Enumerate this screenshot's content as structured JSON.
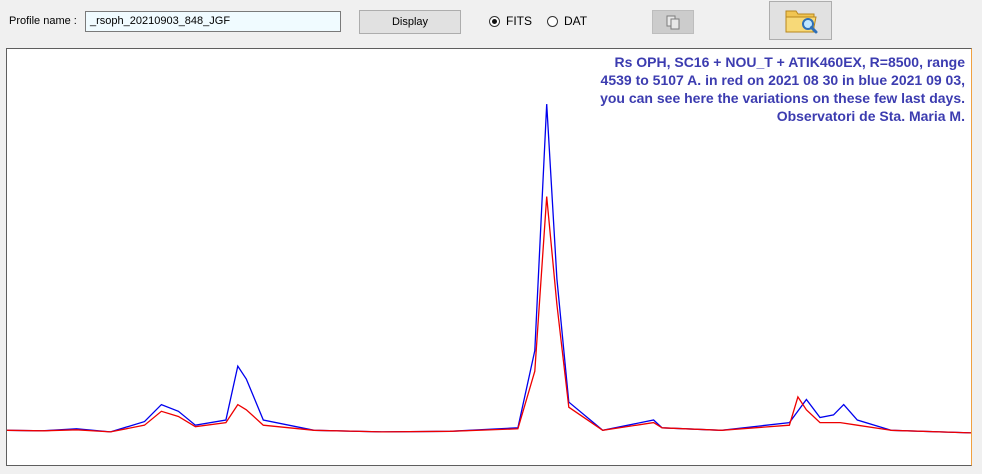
{
  "toolbar": {
    "profile_label": "Profile name :",
    "profile_value": "_rsoph_20210903_848_JGF",
    "display_label": "Display",
    "fits_label": "FITS",
    "dat_label": "DAT",
    "fits_selected": true
  },
  "plot": {
    "annotation": [
      "Rs OPH, SC16 + NOU_T + ATIK460EX, R=8500, range",
      "4539 to 5107 A. in red on 2021 08 30 in blue 2021 09 03,",
      "you can see here the variations on these few last days.",
      "Observatori de Sta. Maria M."
    ],
    "colors": {
      "blue": "#0000ee",
      "red": "#ee0000",
      "note": "#3c3cb0"
    }
  },
  "chart_data": {
    "type": "line",
    "x_range": [
      4539,
      5107
    ],
    "series": [
      {
        "color": "blue",
        "points": [
          [
            4539,
            1.05
          ],
          [
            4560,
            1.04
          ],
          [
            4580,
            1.08
          ],
          [
            4600,
            1.02
          ],
          [
            4620,
            1.22
          ],
          [
            4630,
            1.55
          ],
          [
            4640,
            1.42
          ],
          [
            4650,
            1.15
          ],
          [
            4668,
            1.25
          ],
          [
            4675,
            2.3
          ],
          [
            4680,
            2.05
          ],
          [
            4690,
            1.25
          ],
          [
            4720,
            1.05
          ],
          [
            4760,
            1.02
          ],
          [
            4800,
            1.03
          ],
          [
            4840,
            1.1
          ],
          [
            4850,
            2.6
          ],
          [
            4857,
            7.4
          ],
          [
            4863,
            4.0
          ],
          [
            4870,
            1.6
          ],
          [
            4890,
            1.05
          ],
          [
            4920,
            1.25
          ],
          [
            4925,
            1.1
          ],
          [
            4960,
            1.05
          ],
          [
            5000,
            1.2
          ],
          [
            5010,
            1.65
          ],
          [
            5018,
            1.3
          ],
          [
            5026,
            1.35
          ],
          [
            5032,
            1.55
          ],
          [
            5040,
            1.25
          ],
          [
            5060,
            1.05
          ],
          [
            5107,
            1.0
          ]
        ]
      },
      {
        "color": "red",
        "points": [
          [
            4539,
            1.05
          ],
          [
            4560,
            1.04
          ],
          [
            4580,
            1.06
          ],
          [
            4600,
            1.02
          ],
          [
            4620,
            1.15
          ],
          [
            4630,
            1.42
          ],
          [
            4640,
            1.32
          ],
          [
            4650,
            1.12
          ],
          [
            4668,
            1.2
          ],
          [
            4675,
            1.55
          ],
          [
            4680,
            1.45
          ],
          [
            4690,
            1.15
          ],
          [
            4720,
            1.05
          ],
          [
            4760,
            1.02
          ],
          [
            4800,
            1.03
          ],
          [
            4840,
            1.08
          ],
          [
            4850,
            2.2
          ],
          [
            4857,
            5.6
          ],
          [
            4863,
            3.5
          ],
          [
            4870,
            1.5
          ],
          [
            4890,
            1.05
          ],
          [
            4920,
            1.2
          ],
          [
            4925,
            1.1
          ],
          [
            4960,
            1.05
          ],
          [
            5000,
            1.15
          ],
          [
            5005,
            1.7
          ],
          [
            5010,
            1.45
          ],
          [
            5018,
            1.2
          ],
          [
            5030,
            1.2
          ],
          [
            5040,
            1.15
          ],
          [
            5060,
            1.05
          ],
          [
            5107,
            1.0
          ]
        ]
      }
    ]
  }
}
